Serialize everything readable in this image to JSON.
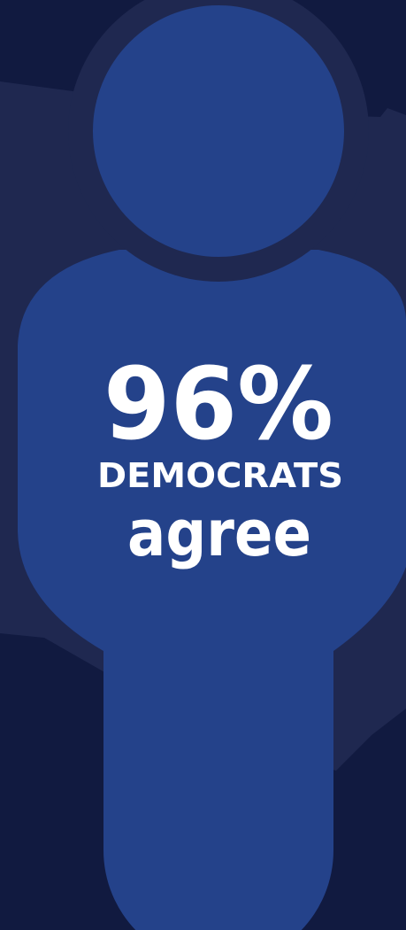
{
  "stat": {
    "headline": "96%",
    "group": "DEMOCRATS",
    "caption": "agree"
  }
}
